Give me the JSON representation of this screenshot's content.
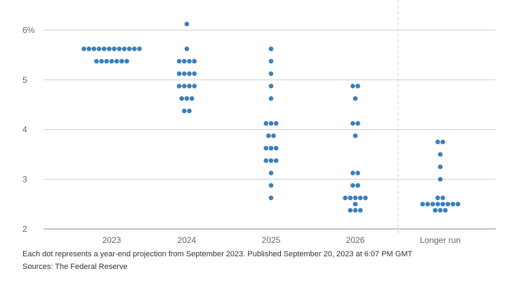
{
  "chart_data": {
    "type": "scatter",
    "title": "",
    "xlabel": "",
    "ylabel": "",
    "categories": [
      "2023",
      "2024",
      "2025",
      "2026",
      "Longer run"
    ],
    "y_ticks": [
      {
        "value": 2,
        "label": "2"
      },
      {
        "value": 3,
        "label": "3"
      },
      {
        "value": 4,
        "label": "4"
      },
      {
        "value": 5,
        "label": "5"
      },
      {
        "value": 6,
        "label": "6%"
      }
    ],
    "ylim": [
      2,
      6.2
    ],
    "grid": true,
    "dot_color": "#3a7fbd",
    "separator_before_category": "Longer run",
    "projections": [
      {
        "category": "2023",
        "levels": [
          {
            "rate": 5.625,
            "count": 12
          },
          {
            "rate": 5.375,
            "count": 7
          }
        ]
      },
      {
        "category": "2024",
        "levels": [
          {
            "rate": 6.125,
            "count": 1
          },
          {
            "rate": 5.625,
            "count": 1
          },
          {
            "rate": 5.375,
            "count": 4
          },
          {
            "rate": 5.125,
            "count": 4
          },
          {
            "rate": 4.875,
            "count": 4
          },
          {
            "rate": 4.625,
            "count": 3
          },
          {
            "rate": 4.375,
            "count": 2
          }
        ]
      },
      {
        "category": "2025",
        "levels": [
          {
            "rate": 5.625,
            "count": 1
          },
          {
            "rate": 5.375,
            "count": 1
          },
          {
            "rate": 5.125,
            "count": 1
          },
          {
            "rate": 4.875,
            "count": 1
          },
          {
            "rate": 4.625,
            "count": 1
          },
          {
            "rate": 4.125,
            "count": 3
          },
          {
            "rate": 3.875,
            "count": 2
          },
          {
            "rate": 3.625,
            "count": 3
          },
          {
            "rate": 3.375,
            "count": 3
          },
          {
            "rate": 3.125,
            "count": 1
          },
          {
            "rate": 2.875,
            "count": 1
          },
          {
            "rate": 2.625,
            "count": 1
          }
        ]
      },
      {
        "category": "2026",
        "levels": [
          {
            "rate": 4.875,
            "count": 2
          },
          {
            "rate": 4.625,
            "count": 1
          },
          {
            "rate": 4.125,
            "count": 2
          },
          {
            "rate": 3.875,
            "count": 1
          },
          {
            "rate": 3.125,
            "count": 2
          },
          {
            "rate": 2.875,
            "count": 2
          },
          {
            "rate": 2.625,
            "count": 5
          },
          {
            "rate": 2.5,
            "count": 1
          },
          {
            "rate": 2.375,
            "count": 3
          }
        ]
      },
      {
        "category": "Longer run",
        "levels": [
          {
            "rate": 3.75,
            "count": 2
          },
          {
            "rate": 3.5,
            "count": 1
          },
          {
            "rate": 3.25,
            "count": 1
          },
          {
            "rate": 3.0,
            "count": 1
          },
          {
            "rate": 2.625,
            "count": 2
          },
          {
            "rate": 2.5,
            "count": 8
          },
          {
            "rate": 2.375,
            "count": 3
          }
        ]
      }
    ]
  },
  "footer": {
    "note": "Each dot represents a year-end projection from September 2023. Published September 20, 2023 at 6:07 PM GMT",
    "source": "Sources: The Federal Reserve"
  }
}
